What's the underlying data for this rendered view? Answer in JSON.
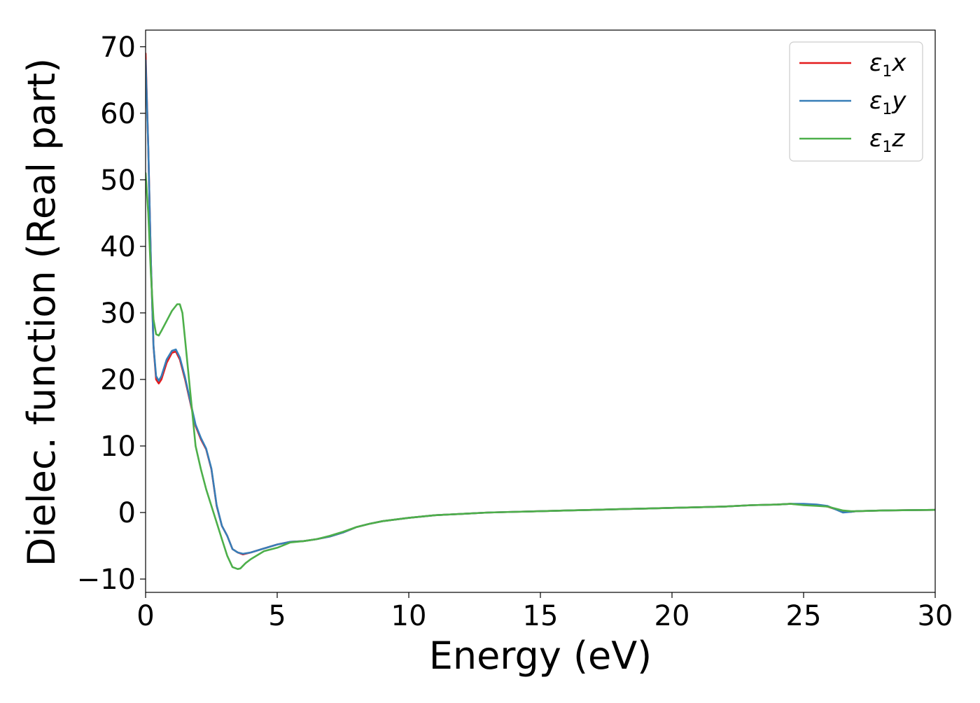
{
  "chart_data": {
    "type": "line",
    "title": "",
    "xlabel": "Energy (eV)",
    "ylabel": "Dielec. function (Real part)",
    "xlim": [
      0,
      30
    ],
    "ylim": [
      -12,
      72.5
    ],
    "xticks": [
      0,
      5,
      10,
      15,
      20,
      25,
      30
    ],
    "yticks": [
      -10,
      0,
      10,
      20,
      30,
      40,
      50,
      60,
      70
    ],
    "xtick_labels": [
      "0",
      "5",
      "10",
      "15",
      "20",
      "25",
      "30"
    ],
    "ytick_labels": [
      "−10",
      "0",
      "10",
      "20",
      "30",
      "40",
      "50",
      "60",
      "70"
    ],
    "grid": false,
    "legend_position": "top-right",
    "series": [
      {
        "name": "ε₁x",
        "legend_base": "ε",
        "legend_sub": "1",
        "legend_var": "x",
        "color": "#e41a1c",
        "x": [
          0,
          0.1,
          0.2,
          0.3,
          0.4,
          0.5,
          0.6,
          0.8,
          1.0,
          1.15,
          1.3,
          1.5,
          1.7,
          1.9,
          2.1,
          2.3,
          2.5,
          2.7,
          2.9,
          3.1,
          3.3,
          3.5,
          3.7,
          4.0,
          4.5,
          5.0,
          5.5,
          6.0,
          6.5,
          7.0,
          7.5,
          8.0,
          8.5,
          9.0,
          10,
          11,
          12,
          13,
          14,
          15,
          16,
          17,
          18,
          19,
          20,
          21,
          22,
          23,
          24,
          24.5,
          25,
          25.5,
          25.9,
          26.2,
          26.5,
          26.8,
          27,
          28,
          29,
          30
        ],
        "y": [
          69,
          55,
          38,
          25,
          20,
          19.4,
          20,
          22.5,
          24,
          24.2,
          23,
          20,
          16.5,
          13,
          11,
          9.5,
          6.5,
          1,
          -2,
          -3.5,
          -5.5,
          -6,
          -6.3,
          -6,
          -5.4,
          -4.8,
          -4.4,
          -4.3,
          -4,
          -3.6,
          -3,
          -2.2,
          -1.7,
          -1.3,
          -0.8,
          -0.4,
          -0.2,
          0.0,
          0.1,
          0.2,
          0.3,
          0.4,
          0.5,
          0.6,
          0.7,
          0.8,
          0.9,
          1.1,
          1.2,
          1.3,
          1.2,
          1.1,
          0.9,
          0.5,
          0.1,
          0.1,
          0.2,
          0.3,
          0.35,
          0.4
        ]
      },
      {
        "name": "ε₁y",
        "legend_base": "ε",
        "legend_sub": "1",
        "legend_var": "y",
        "color": "#377eb8",
        "x": [
          0,
          0.1,
          0.2,
          0.3,
          0.4,
          0.5,
          0.6,
          0.8,
          1.0,
          1.15,
          1.3,
          1.5,
          1.7,
          1.9,
          2.1,
          2.3,
          2.5,
          2.7,
          2.9,
          3.1,
          3.3,
          3.5,
          3.7,
          4.0,
          4.5,
          5.0,
          5.5,
          6.0,
          6.5,
          7.0,
          7.5,
          8.0,
          8.5,
          9.0,
          10,
          11,
          12,
          13,
          14,
          15,
          16,
          17,
          18,
          19,
          20,
          21,
          22,
          23,
          24,
          24.5,
          25,
          25.5,
          25.9,
          26.2,
          26.5,
          26.8,
          27,
          28,
          29,
          30
        ],
        "y": [
          68,
          55,
          38,
          25,
          20.5,
          19.8,
          20.5,
          23,
          24.3,
          24.5,
          23.3,
          20.3,
          16.7,
          13.2,
          11.2,
          9.6,
          6.6,
          1.1,
          -2,
          -3.5,
          -5.5,
          -6,
          -6.2,
          -6,
          -5.4,
          -4.8,
          -4.4,
          -4.3,
          -4,
          -3.6,
          -3,
          -2.2,
          -1.7,
          -1.3,
          -0.8,
          -0.4,
          -0.2,
          0.0,
          0.1,
          0.2,
          0.3,
          0.4,
          0.5,
          0.6,
          0.7,
          0.8,
          0.9,
          1.1,
          1.2,
          1.3,
          1.3,
          1.2,
          1.0,
          0.5,
          0.0,
          0.1,
          0.2,
          0.3,
          0.35,
          0.4
        ]
      },
      {
        "name": "ε₁z",
        "legend_base": "ε",
        "legend_sub": "1",
        "legend_var": "z",
        "color": "#4daf4a",
        "x": [
          0,
          0.1,
          0.2,
          0.3,
          0.4,
          0.5,
          0.6,
          0.8,
          1.0,
          1.2,
          1.3,
          1.4,
          1.5,
          1.7,
          1.9,
          2.1,
          2.3,
          2.5,
          2.7,
          2.9,
          3.1,
          3.3,
          3.5,
          3.6,
          3.8,
          4.0,
          4.5,
          5.0,
          5.5,
          6.0,
          6.5,
          7.0,
          7.5,
          8.0,
          8.5,
          9.0,
          10,
          11,
          12,
          13,
          14,
          15,
          16,
          17,
          18,
          19,
          20,
          21,
          22,
          23,
          24,
          24.5,
          25,
          25.5,
          25.9,
          26.2,
          26.5,
          26.8,
          27,
          28,
          29,
          30
        ],
        "y": [
          51,
          45,
          36,
          29,
          26.8,
          26.6,
          27.3,
          28.8,
          30.3,
          31.3,
          31.3,
          30,
          26,
          18,
          10,
          6.5,
          3.5,
          1,
          -1.5,
          -4,
          -6.5,
          -8.2,
          -8.5,
          -8.4,
          -7.6,
          -7,
          -5.8,
          -5.3,
          -4.5,
          -4.3,
          -4,
          -3.5,
          -2.9,
          -2.2,
          -1.7,
          -1.3,
          -0.8,
          -0.4,
          -0.2,
          0.0,
          0.1,
          0.2,
          0.3,
          0.4,
          0.5,
          0.6,
          0.7,
          0.8,
          0.9,
          1.1,
          1.2,
          1.3,
          1.1,
          1.0,
          0.9,
          0.6,
          0.3,
          0.2,
          0.2,
          0.3,
          0.35,
          0.4
        ]
      }
    ]
  }
}
